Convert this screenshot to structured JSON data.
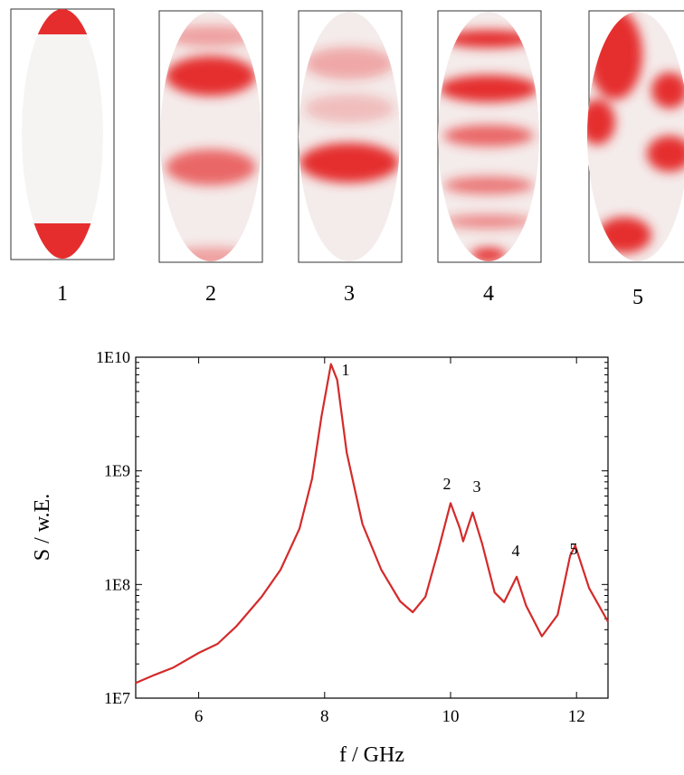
{
  "modes": [
    "1",
    "2",
    "3",
    "4",
    "5"
  ],
  "chart_data": {
    "type": "line",
    "x_label": "f / GHz",
    "y_label": "S / w.E.",
    "log_y": true,
    "color": "#d42a2a",
    "xlim": [
      5,
      12.5
    ],
    "xticks": [
      6,
      8,
      10,
      12
    ],
    "ylim": [
      10000000,
      10000000000
    ],
    "yticks": [
      {
        "value": 10000000,
        "label": "1E7"
      },
      {
        "value": 100000000,
        "label": "1E8"
      },
      {
        "value": 1000000000,
        "label": "1E9"
      },
      {
        "value": 10000000000,
        "label": "1E10"
      }
    ],
    "annotations": [
      "1",
      "2",
      "3",
      "4",
      "5"
    ],
    "x": [
      5.0,
      5.3,
      5.6,
      6.0,
      6.3,
      6.6,
      7.0,
      7.3,
      7.6,
      7.8,
      7.95,
      8.1,
      8.2,
      8.35,
      8.6,
      8.9,
      9.2,
      9.4,
      9.6,
      9.8,
      10.0,
      10.15,
      10.2,
      10.35,
      10.5,
      10.7,
      10.85,
      11.05,
      11.2,
      11.45,
      11.7,
      11.9,
      11.98,
      12.2,
      12.5
    ],
    "series": [
      {
        "values": [
          13600000,
          16000000,
          18600000,
          25000000,
          30000000,
          43000000,
          78000000,
          135000000,
          310000000,
          850000000,
          3000000000,
          8700000000,
          6300000000,
          1450000000,
          340000000,
          135000000,
          71000000,
          57000000,
          78000000,
          195000000,
          520000000,
          310000000,
          240000000,
          430000000,
          230000000,
          85000000,
          70000000,
          117000000,
          65000000,
          35000000,
          54000000,
          180000000,
          220000000,
          93000000,
          47000000
        ]
      }
    ]
  }
}
